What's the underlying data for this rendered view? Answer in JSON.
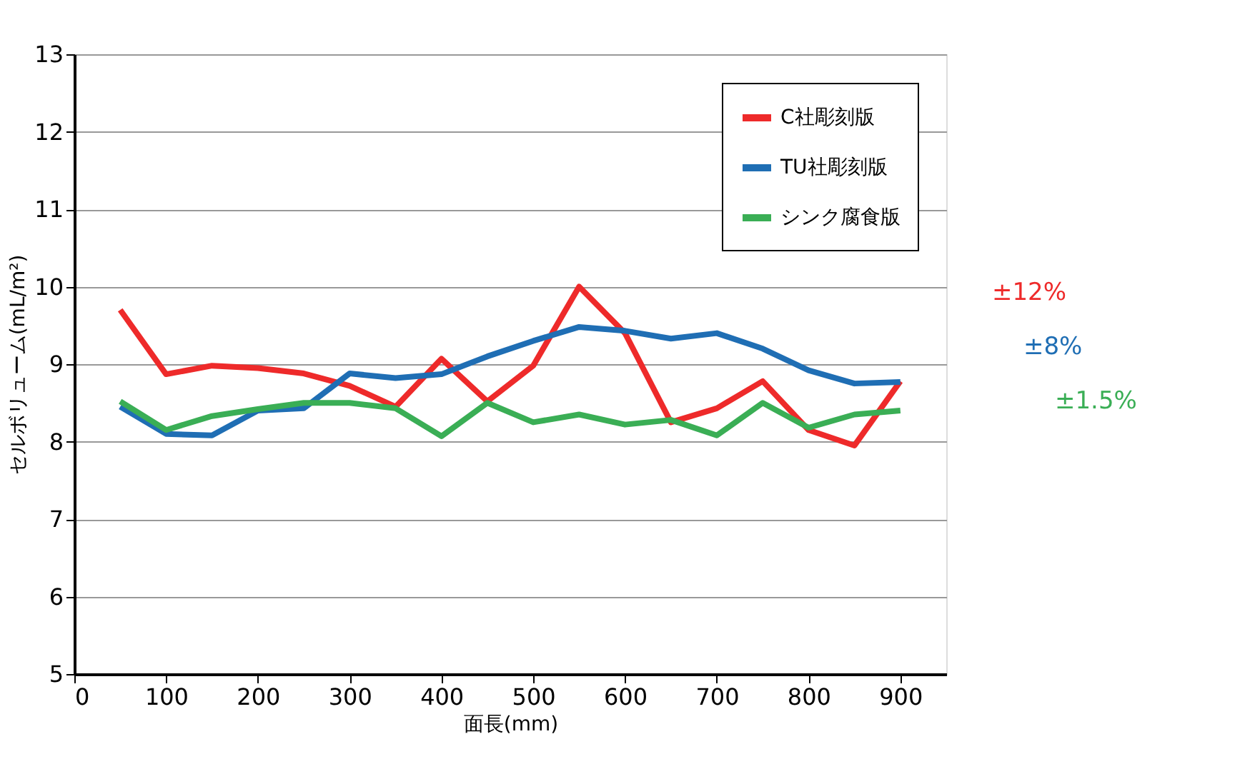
{
  "chart_data": {
    "type": "line",
    "xlabel": "面長(mm)",
    "ylabel": "セルボリューム(mL/m²)",
    "x": [
      50,
      100,
      150,
      200,
      250,
      300,
      350,
      400,
      450,
      500,
      550,
      600,
      650,
      700,
      750,
      800,
      850,
      900
    ],
    "series": [
      {
        "name": "C社彫刻版",
        "color": "#ee2a2a",
        "values": [
          9.7,
          8.87,
          8.98,
          8.95,
          8.88,
          8.72,
          8.45,
          9.07,
          8.52,
          8.98,
          10.0,
          9.4,
          8.25,
          8.43,
          8.78,
          8.15,
          7.95,
          8.78
        ]
      },
      {
        "name": "TU社彫刻版",
        "color": "#1f6eb4",
        "values": [
          8.45,
          8.1,
          8.08,
          8.4,
          8.43,
          8.88,
          8.82,
          8.87,
          9.1,
          9.3,
          9.48,
          9.43,
          9.33,
          9.4,
          9.2,
          8.92,
          8.75,
          8.77
        ]
      },
      {
        "name": "シンク腐食版",
        "color": "#3aae55",
        "values": [
          8.52,
          8.15,
          8.33,
          8.42,
          8.5,
          8.5,
          8.43,
          8.07,
          8.5,
          8.25,
          8.35,
          8.22,
          8.28,
          8.08,
          8.5,
          8.18,
          8.35,
          8.4
        ]
      }
    ],
    "xlim": [
      0,
      950
    ],
    "xticks": [
      0,
      100,
      200,
      300,
      400,
      500,
      600,
      700,
      800,
      900
    ],
    "ylim": [
      5,
      13
    ],
    "yticks": [
      5,
      6,
      7,
      8,
      9,
      10,
      11,
      12,
      13
    ],
    "grid": "y",
    "legend": "top right",
    "marker": "none",
    "line_style": "solid",
    "annotations": [
      "±12%",
      "±8%",
      "±1.5%"
    ]
  }
}
